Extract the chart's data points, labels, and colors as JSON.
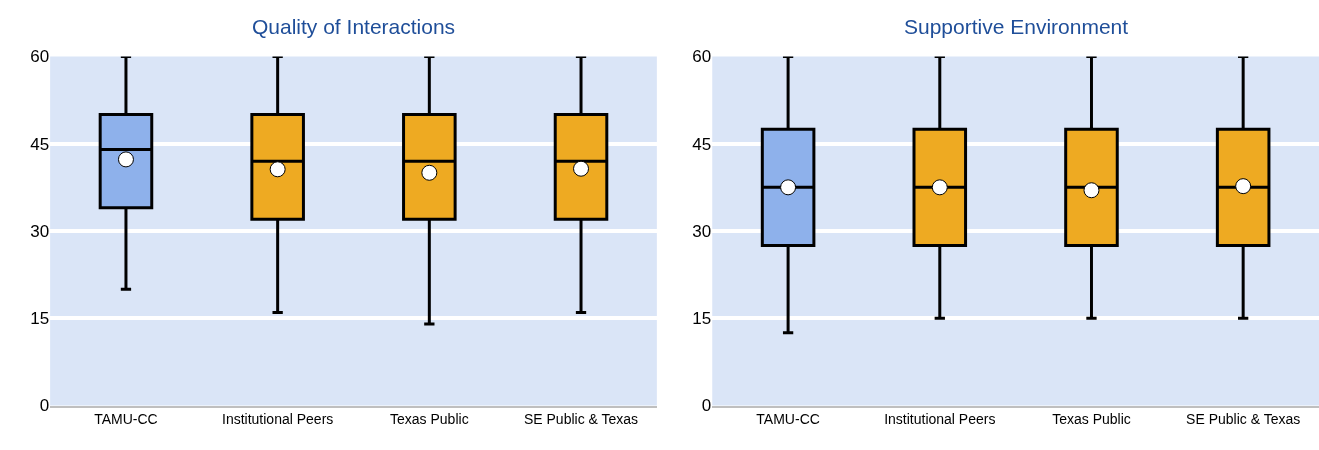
{
  "chart_data": [
    {
      "type": "box",
      "title": "Quality of Interactions",
      "categories": [
        "TAMU-CC",
        "Institutional Peers",
        "Texas Public",
        "SE Public & Texas"
      ],
      "colors": [
        "#8eb1eb",
        "#eeaa22",
        "#eeaa22",
        "#eeaa22"
      ],
      "ylim": [
        0,
        60
      ],
      "yticks": [
        0,
        15,
        30,
        45,
        60
      ],
      "grid": "y",
      "boxes": [
        {
          "low": 20,
          "q1": 34,
          "median": 44,
          "q3": 50,
          "high": 60,
          "mean": 42.3
        },
        {
          "low": 16,
          "q1": 32,
          "median": 42,
          "q3": 50,
          "high": 60,
          "mean": 40.6
        },
        {
          "low": 14,
          "q1": 32,
          "median": 42,
          "q3": 50,
          "high": 60,
          "mean": 40.0
        },
        {
          "low": 16,
          "q1": 32,
          "median": 42,
          "q3": 50,
          "high": 60,
          "mean": 40.7
        }
      ]
    },
    {
      "type": "box",
      "title": "Supportive Environment",
      "categories": [
        "TAMU-CC",
        "Institutional Peers",
        "Texas Public",
        "SE Public & Texas"
      ],
      "colors": [
        "#8eb1eb",
        "#eeaa22",
        "#eeaa22",
        "#eeaa22"
      ],
      "ylim": [
        0,
        60
      ],
      "yticks": [
        0,
        15,
        30,
        45,
        60
      ],
      "grid": "y",
      "boxes": [
        {
          "low": 12.5,
          "q1": 27.5,
          "median": 37.5,
          "q3": 47.5,
          "high": 60,
          "mean": 37.5
        },
        {
          "low": 15,
          "q1": 27.5,
          "median": 37.5,
          "q3": 47.5,
          "high": 60,
          "mean": 37.5
        },
        {
          "low": 15,
          "q1": 27.5,
          "median": 37.5,
          "q3": 47.5,
          "high": 60,
          "mean": 37.0
        },
        {
          "low": 15,
          "q1": 27.5,
          "median": 37.5,
          "q3": 47.5,
          "high": 60,
          "mean": 37.7
        }
      ]
    }
  ]
}
